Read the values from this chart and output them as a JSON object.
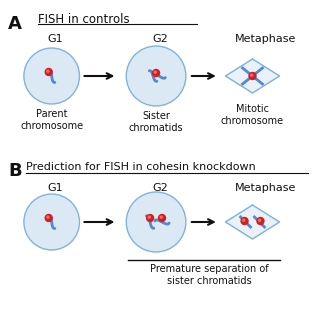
{
  "panel_A_label": "A",
  "panel_B_label": "B",
  "title_A": "FISH in controls",
  "title_B": "Prediction for FISH in cohesin knockdown",
  "stage_labels_A": [
    "G1",
    "G2",
    "Metaphase"
  ],
  "stage_labels_B": [
    "G1",
    "G2",
    "Metaphase"
  ],
  "caption_A": [
    "Parent\nchromosome",
    "Sister\nchromatids",
    "Mitotic\nchromosome"
  ],
  "caption_B": [
    "",
    "",
    "Premature separation of\nsister chromatids"
  ],
  "cell_color": "#cce0f0",
  "cell_edge_color": "#5599cc",
  "chromatid_color": "#5588cc",
  "dot_color": "#cc2222",
  "bg_color": "#ffffff",
  "arrow_color": "#111111",
  "underline_color": "#111111",
  "text_color": "#111111"
}
